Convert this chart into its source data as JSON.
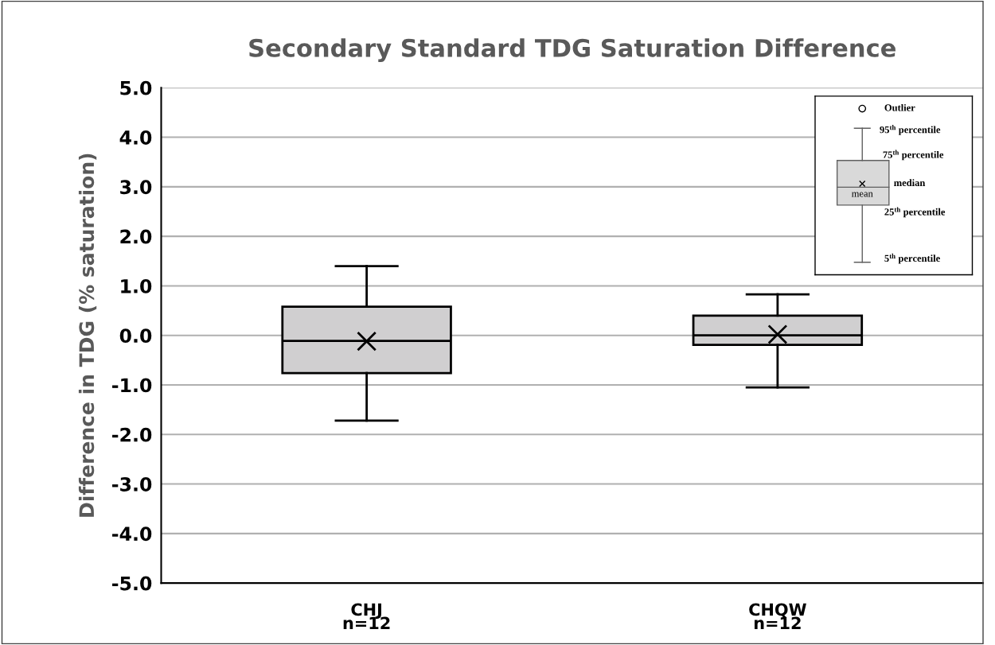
{
  "chart_data": {
    "type": "box",
    "title": "Secondary Standard TDG Saturation Difference",
    "ylabel": "Difference in TDG (% saturation)",
    "categories": [
      "CHJ\nn=12",
      "CHQW\nn=12"
    ],
    "boxes": [
      {
        "low": -1.72,
        "q1": -0.76,
        "median": -0.11,
        "q3": 0.58,
        "high": 1.4,
        "mean": -0.12
      },
      {
        "low": -1.05,
        "q1": -0.19,
        "median": 0.0,
        "q3": 0.4,
        "high": 0.83,
        "mean": 0.02
      }
    ],
    "color": "#d0cfd0",
    "ylim": [
      -5,
      5
    ],
    "yticks": [
      {
        "value": -5,
        "label": "-5.0"
      },
      {
        "value": -4,
        "label": "-4.0"
      },
      {
        "value": -3,
        "label": "-3.0"
      },
      {
        "value": -2,
        "label": "-2.0"
      },
      {
        "value": -1,
        "label": "-1.0"
      },
      {
        "value": 0,
        "label": "0.0"
      },
      {
        "value": 1,
        "label": "1.0"
      },
      {
        "value": 2,
        "label": "2.0"
      },
      {
        "value": 3,
        "label": "3.0"
      },
      {
        "value": 4,
        "label": "4.0"
      },
      {
        "value": 5,
        "label": "5.0"
      }
    ],
    "grid": "y",
    "annotations": [
      "Outlier",
      "95$^{th}$ percentile",
      "75$^{th}$ percentile",
      "median",
      "mean",
      "25$^{th}$ percentile",
      "5$^{th}$ percentile"
    ]
  }
}
